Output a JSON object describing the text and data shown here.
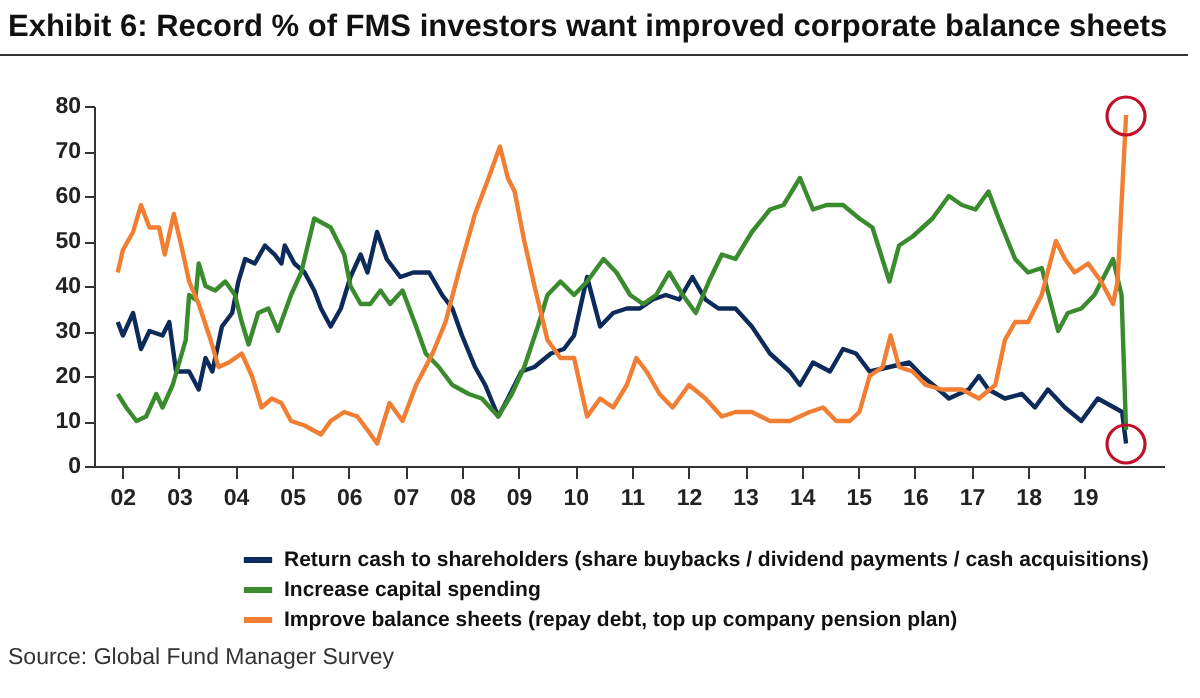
{
  "chart_data": {
    "type": "line",
    "title": "Exhibit 6: Record % of FMS investors want improved corporate balance sheets",
    "annotations": [
      "Source: Global Fund Manager Survey"
    ],
    "xlim": [
      2001.5,
      2020.4
    ],
    "xticks": [
      {
        "value": 2002,
        "label": "02"
      },
      {
        "value": 2003,
        "label": "03"
      },
      {
        "value": 2004,
        "label": "04"
      },
      {
        "value": 2005,
        "label": "05"
      },
      {
        "value": 2006,
        "label": "06"
      },
      {
        "value": 2007,
        "label": "07"
      },
      {
        "value": 2008,
        "label": "08"
      },
      {
        "value": 2009,
        "label": "09"
      },
      {
        "value": 2010,
        "label": "10"
      },
      {
        "value": 2011,
        "label": "11"
      },
      {
        "value": 2012,
        "label": "12"
      },
      {
        "value": 2013,
        "label": "13"
      },
      {
        "value": 2014,
        "label": "14"
      },
      {
        "value": 2015,
        "label": "15"
      },
      {
        "value": 2016,
        "label": "16"
      },
      {
        "value": 2017,
        "label": "17"
      },
      {
        "value": 2018,
        "label": "18"
      },
      {
        "value": 2019,
        "label": "19"
      }
    ],
    "ylim": [
      0,
      80
    ],
    "yticks": [
      0,
      10,
      20,
      30,
      40,
      50,
      60,
      70,
      80
    ],
    "grid": false,
    "legend": "bottom",
    "marker": "none",
    "line_style": "solid",
    "series": [
      {
        "name": "Return cash to shareholders (share buybacks / dividend payments / cash acquisitions)",
        "color": "#0d2b5a",
        "x": [
          2001.92,
          2002.01,
          2002.19,
          2002.33,
          2002.48,
          2002.71,
          2002.83,
          2002.95,
          2003.18,
          2003.35,
          2003.47,
          2003.59,
          2003.76,
          2003.94,
          2004.05,
          2004.17,
          2004.34,
          2004.52,
          2004.69,
          2004.81,
          2004.87,
          2005.04,
          2005.22,
          2005.39,
          2005.51,
          2005.68,
          2005.86,
          2006.03,
          2006.21,
          2006.33,
          2006.5,
          2006.67,
          2006.91,
          2007.14,
          2007.42,
          2007.65,
          2007.83,
          2008.0,
          2008.23,
          2008.41,
          2008.64,
          2008.81,
          2009.05,
          2009.28,
          2009.57,
          2009.8,
          2009.98,
          2010.21,
          2010.44,
          2010.67,
          2010.91,
          2011.14,
          2011.37,
          2011.6,
          2011.84,
          2012.07,
          2012.3,
          2012.53,
          2012.83,
          2013.12,
          2013.44,
          2013.79,
          2013.97,
          2014.2,
          2014.5,
          2014.73,
          2014.96,
          2015.2,
          2015.55,
          2015.9,
          2016.13,
          2016.42,
          2016.6,
          2016.95,
          2017.13,
          2017.3,
          2017.59,
          2017.89,
          2018.12,
          2018.35,
          2018.65,
          2018.94,
          2019.23,
          2019.52,
          2019.66,
          2019.73
        ],
        "values": [
          32,
          29,
          34,
          26,
          30,
          29,
          32,
          21,
          21,
          17,
          24,
          21,
          31,
          34,
          41,
          46,
          45,
          49,
          47,
          45,
          49,
          45,
          43,
          39,
          35,
          31,
          35,
          42,
          47,
          43,
          52,
          46,
          42,
          43,
          43,
          38,
          35,
          29,
          22,
          18,
          11,
          15,
          21,
          22,
          25,
          26,
          29,
          42,
          31,
          34,
          35,
          35,
          37,
          38,
          37,
          42,
          37,
          35,
          35,
          31,
          25,
          21,
          18,
          23,
          21,
          26,
          25,
          21,
          22,
          23,
          20,
          17,
          15,
          17,
          20,
          17,
          15,
          16,
          13,
          17,
          13,
          10,
          15,
          13,
          12,
          5
        ]
      },
      {
        "name": "Increase capital spending",
        "color": "#3a8a2e",
        "x": [
          2001.92,
          2002.07,
          2002.25,
          2002.42,
          2002.6,
          2002.71,
          2002.89,
          2003.12,
          2003.18,
          2003.29,
          2003.35,
          2003.47,
          2003.64,
          2003.82,
          2003.99,
          2004.11,
          2004.23,
          2004.4,
          2004.58,
          2004.75,
          2004.98,
          2005.16,
          2005.39,
          2005.68,
          2005.92,
          2006.03,
          2006.21,
          2006.38,
          2006.56,
          2006.73,
          2006.95,
          2007.19,
          2007.36,
          2007.59,
          2007.83,
          2008.12,
          2008.35,
          2008.64,
          2008.88,
          2009.1,
          2009.34,
          2009.51,
          2009.74,
          2009.98,
          2010.21,
          2010.5,
          2010.73,
          2010.97,
          2011.2,
          2011.43,
          2011.66,
          2011.9,
          2012.13,
          2012.36,
          2012.59,
          2012.83,
          2013.12,
          2013.44,
          2013.68,
          2013.97,
          2014.2,
          2014.44,
          2014.73,
          2015.02,
          2015.25,
          2015.55,
          2015.72,
          2015.96,
          2016.31,
          2016.6,
          2016.83,
          2017.07,
          2017.3,
          2017.48,
          2017.77,
          2018.0,
          2018.24,
          2018.53,
          2018.7,
          2018.94,
          2019.17,
          2019.5,
          2019.65,
          2019.73
        ],
        "values": [
          16,
          13,
          10,
          11,
          16,
          13,
          18,
          28,
          38,
          37,
          45,
          40,
          39,
          41,
          38,
          32,
          27,
          34,
          35,
          30,
          38,
          43,
          55,
          53,
          47,
          40,
          36,
          36,
          39,
          36,
          39,
          31,
          25,
          22,
          18,
          16,
          15,
          11,
          16,
          22,
          31,
          38,
          41,
          38,
          41,
          46,
          43,
          38,
          36,
          38,
          43,
          38,
          34,
          41,
          47,
          46,
          52,
          57,
          58,
          64,
          57,
          58,
          58,
          55,
          53,
          41,
          49,
          51,
          55,
          60,
          58,
          57,
          61,
          55,
          46,
          43,
          44,
          30,
          34,
          35,
          38,
          46,
          38,
          8
        ]
      },
      {
        "name": "Improve balance sheets (repay debt, top up company pension plan)",
        "color": "#f07f33",
        "x": [
          2001.92,
          2002.01,
          2002.19,
          2002.33,
          2002.48,
          2002.65,
          2002.75,
          2002.91,
          2003.06,
          2003.18,
          2003.35,
          2003.56,
          2003.7,
          2003.88,
          2004.11,
          2004.29,
          2004.46,
          2004.64,
          2004.81,
          2004.98,
          2005.22,
          2005.51,
          2005.68,
          2005.92,
          2006.15,
          2006.33,
          2006.5,
          2006.72,
          2006.95,
          2007.19,
          2007.48,
          2007.71,
          2007.94,
          2008.23,
          2008.47,
          2008.67,
          2008.81,
          2008.93,
          2009.1,
          2009.28,
          2009.51,
          2009.74,
          2009.98,
          2010.21,
          2010.44,
          2010.67,
          2010.91,
          2011.08,
          2011.26,
          2011.49,
          2011.72,
          2012.01,
          2012.3,
          2012.59,
          2012.83,
          2013.12,
          2013.44,
          2013.79,
          2014.14,
          2014.38,
          2014.61,
          2014.85,
          2015.02,
          2015.2,
          2015.43,
          2015.57,
          2015.72,
          2015.96,
          2016.19,
          2016.48,
          2016.83,
          2017.13,
          2017.42,
          2017.59,
          2017.77,
          2018.0,
          2018.24,
          2018.49,
          2018.65,
          2018.82,
          2019.06,
          2019.29,
          2019.5,
          2019.58,
          2019.73
        ],
        "values": [
          43,
          48,
          52,
          58,
          53,
          53,
          47,
          56,
          48,
          41,
          36,
          28,
          22,
          23,
          25,
          20,
          13,
          15,
          14,
          10,
          9,
          7,
          10,
          12,
          11,
          8,
          5,
          14,
          10,
          18,
          25,
          32,
          43,
          56,
          64,
          71,
          64,
          61,
          50,
          40,
          28,
          24,
          24,
          11,
          15,
          13,
          18,
          24,
          21,
          16,
          13,
          18,
          15,
          11,
          12,
          12,
          10,
          10,
          12,
          13,
          10,
          10,
          12,
          20,
          22,
          29,
          22,
          21,
          18,
          17,
          17,
          15,
          18,
          28,
          32,
          32,
          38,
          50,
          46,
          43,
          45,
          41,
          36,
          41,
          78
        ]
      }
    ]
  }
}
